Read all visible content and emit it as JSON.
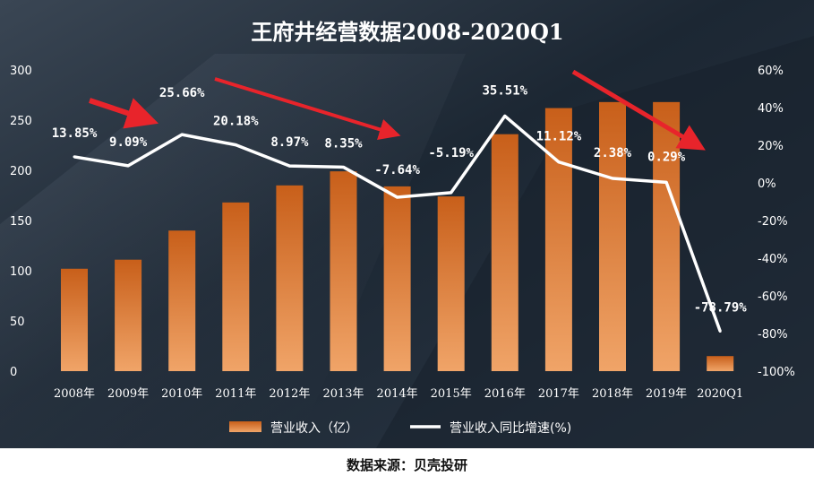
{
  "chart_data": {
    "type": "bar+line",
    "title": "王府井经营数据2008-2020Q1",
    "categories": [
      "2008年",
      "2009年",
      "2010年",
      "2011年",
      "2012年",
      "2013年",
      "2014年",
      "2015年",
      "2016年",
      "2017年",
      "2018年",
      "2019年",
      "2020Q1"
    ],
    "series": [
      {
        "name": "营业收入（亿）",
        "type": "bar",
        "axis": "left",
        "values": [
          102,
          111,
          140,
          168,
          185,
          199,
          184,
          174,
          236,
          262,
          268,
          268,
          15
        ]
      },
      {
        "name": "营业收入同比增速(%)",
        "type": "line",
        "axis": "right",
        "values": [
          13.85,
          9.09,
          25.66,
          20.18,
          8.97,
          8.35,
          -7.64,
          -5.19,
          35.51,
          11.12,
          2.38,
          0.29,
          -78.79
        ],
        "labels": [
          "13.85%",
          "9.09%",
          "25.66%",
          "20.18%",
          "8.97%",
          "8.35%",
          "-7.64%",
          "-5.19%",
          "35.51%",
          "11.12%",
          "2.38%",
          "0.29%",
          "-78.79%"
        ]
      }
    ],
    "left_axis": {
      "ylim": [
        0,
        300
      ],
      "ticks": [
        "0",
        "50",
        "100",
        "150",
        "200",
        "250",
        "300"
      ]
    },
    "right_axis": {
      "ylim": [
        -100,
        60
      ],
      "ticks": [
        "-100%",
        "-80%",
        "-60%",
        "-40%",
        "-20%",
        "0%",
        "20%",
        "40%",
        "60%"
      ]
    },
    "legend_position": "bottom",
    "annotations": [
      "red arrows indicating trends"
    ],
    "grid": false
  },
  "source_text": "数据来源：贝壳投研",
  "colors": {
    "background_dark": "#1c2733",
    "bar_top": "#c85f1a",
    "bar_bottom": "#f0a468",
    "line": "#ffffff",
    "arrow": "#e8242b",
    "text": "#ffffff"
  }
}
